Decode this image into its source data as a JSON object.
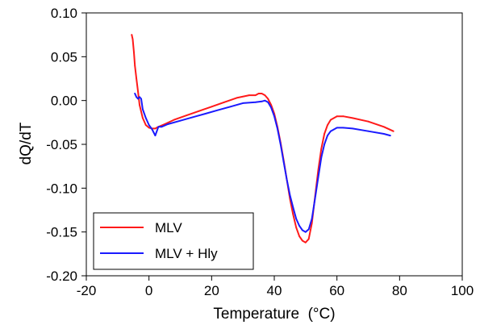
{
  "chart_data": {
    "type": "line",
    "title": "",
    "xlabel": "Temperature  (°C)",
    "ylabel": "dQ/dT",
    "xlim": [
      -20,
      100
    ],
    "ylim": [
      -0.2,
      0.1
    ],
    "xticks": [
      -20,
      0,
      20,
      40,
      60,
      80,
      100
    ],
    "yticks": [
      "0.10",
      "0.05",
      "0.00",
      "-0.05",
      "-0.10",
      "-0.15",
      "-0.20"
    ],
    "grid": false,
    "legend_position": "bottom-left",
    "series": [
      {
        "name": "MLV",
        "color": "#ff1a1a",
        "x": [
          -5.5,
          -5.2,
          -4.8,
          -4.5,
          -4.0,
          -3.5,
          -3.0,
          -2.0,
          -1.0,
          0,
          1,
          2,
          3,
          5,
          8,
          12,
          16,
          20,
          24,
          28,
          32,
          34,
          35,
          36,
          37,
          38,
          39,
          40,
          41,
          42,
          43,
          44,
          45,
          46,
          47,
          48,
          49,
          50,
          51,
          52,
          53,
          54,
          55,
          56,
          57,
          58,
          60,
          62,
          65,
          70,
          75,
          78
        ],
        "y": [
          0.075,
          0.07,
          0.055,
          0.04,
          0.025,
          0.01,
          -0.005,
          -0.02,
          -0.028,
          -0.031,
          -0.032,
          -0.032,
          -0.03,
          -0.027,
          -0.022,
          -0.017,
          -0.012,
          -0.007,
          -0.002,
          0.003,
          0.006,
          0.006,
          0.008,
          0.008,
          0.006,
          0.002,
          -0.005,
          -0.015,
          -0.03,
          -0.048,
          -0.068,
          -0.09,
          -0.112,
          -0.13,
          -0.145,
          -0.155,
          -0.16,
          -0.162,
          -0.158,
          -0.14,
          -0.11,
          -0.08,
          -0.055,
          -0.038,
          -0.028,
          -0.022,
          -0.018,
          -0.018,
          -0.02,
          -0.024,
          -0.03,
          -0.035
        ]
      },
      {
        "name": "MLV + Hly",
        "color": "#1a1aff",
        "x": [
          -4.5,
          -4.0,
          -3.5,
          -3.0,
          -2.5,
          -2.0,
          -1.0,
          0,
          1,
          2,
          2.5,
          3,
          4,
          6,
          10,
          14,
          18,
          22,
          26,
          30,
          34,
          36,
          37,
          38,
          39,
          40,
          41,
          42,
          43,
          44,
          45,
          46,
          47,
          48,
          49,
          50,
          51,
          52,
          53,
          54,
          55,
          56,
          57,
          58,
          60,
          62,
          65,
          70,
          75,
          77
        ],
        "y": [
          0.008,
          0.004,
          0.002,
          0.004,
          0.002,
          -0.01,
          -0.02,
          -0.028,
          -0.033,
          -0.04,
          -0.035,
          -0.03,
          -0.03,
          -0.027,
          -0.023,
          -0.019,
          -0.015,
          -0.011,
          -0.007,
          -0.003,
          -0.002,
          -0.001,
          0.0,
          -0.002,
          -0.008,
          -0.018,
          -0.032,
          -0.05,
          -0.07,
          -0.09,
          -0.108,
          -0.122,
          -0.135,
          -0.143,
          -0.148,
          -0.15,
          -0.147,
          -0.135,
          -0.112,
          -0.088,
          -0.065,
          -0.05,
          -0.04,
          -0.035,
          -0.031,
          -0.031,
          -0.032,
          -0.035,
          -0.038,
          -0.04
        ]
      }
    ]
  }
}
